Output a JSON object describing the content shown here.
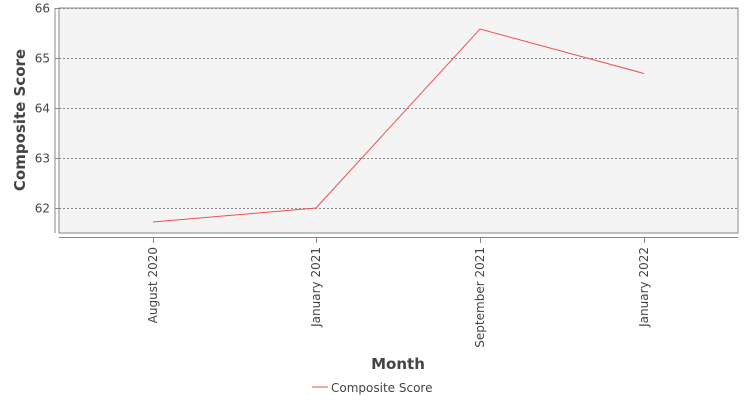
{
  "chart_data": {
    "type": "line",
    "title": "",
    "xlabel": "Month",
    "ylabel": "Composite Score",
    "categories": [
      "August 2020",
      "January 2021",
      "September 2021",
      "January 2022"
    ],
    "series": [
      {
        "name": "Composite Score",
        "color": "#f0504f",
        "values": [
          61.72,
          62.0,
          65.58,
          64.69
        ]
      }
    ],
    "ylim": [
      61.5,
      66.0
    ],
    "yticks": [
      62,
      63,
      64,
      65,
      66
    ],
    "grid": true,
    "legend_position": "bottom-center",
    "plot_background": "#f4f4f4",
    "grid_color": "#888888"
  }
}
